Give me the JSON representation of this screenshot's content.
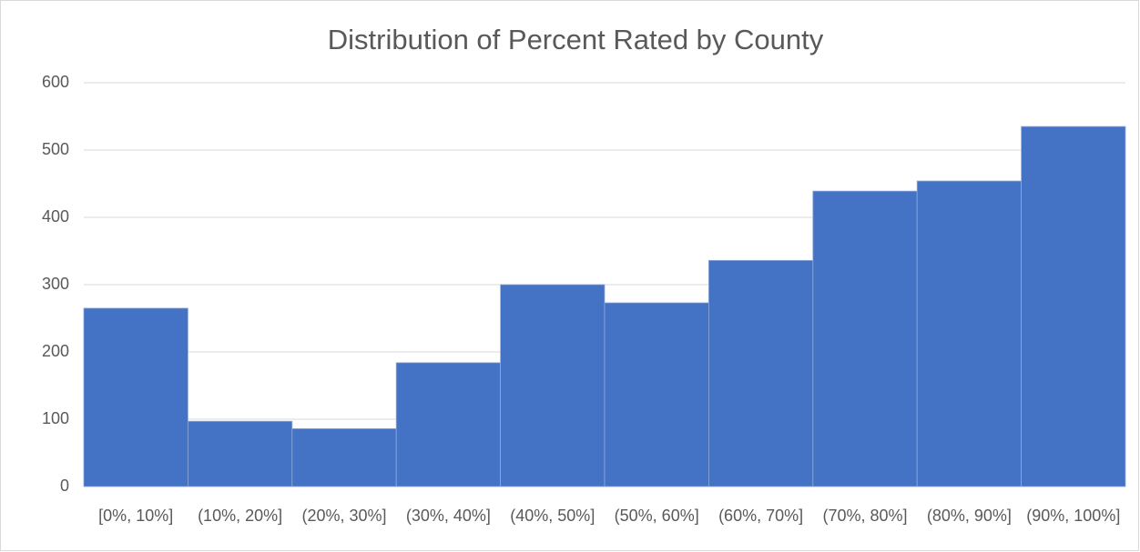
{
  "chart_data": {
    "type": "bar",
    "title": "Distribution of Percent Rated by County",
    "categories": [
      "[0%, 10%]",
      "(10%, 20%]",
      "(20%, 30%]",
      "(30%, 40%]",
      "(40%, 50%]",
      "(50%, 60%]",
      "(60%, 70%]",
      "(70%, 80%]",
      "(80%, 90%]",
      "(90%, 100%]"
    ],
    "values": [
      265,
      97,
      86,
      184,
      300,
      273,
      336,
      439,
      454,
      535
    ],
    "color": "#4472c4",
    "ylim": [
      0,
      600
    ],
    "yticks": [
      0,
      100,
      200,
      300,
      400,
      500,
      600
    ],
    "grid": true
  }
}
